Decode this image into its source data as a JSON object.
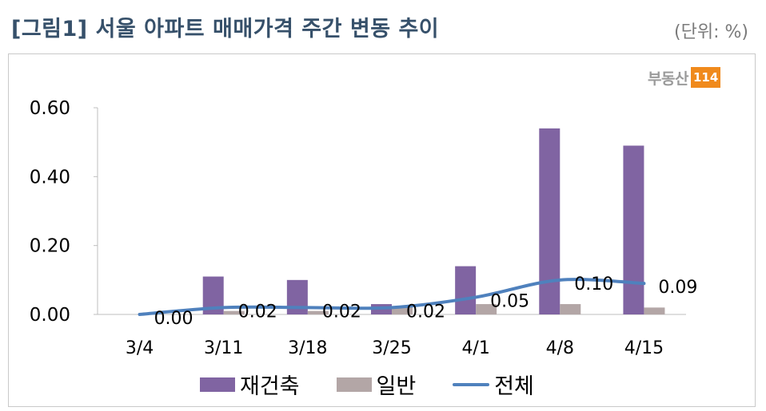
{
  "header": {
    "title": "[그림1] 서울 아파트 매매가격 주간 변동 추이",
    "unit": "(단위: %)"
  },
  "logo": {
    "text": "부동산",
    "box": "114"
  },
  "colors": {
    "reconstruction": "#8064a2",
    "general": "#b3a6a6",
    "total": "#4f81bd",
    "title": "#36506a",
    "logo": "#f08a1c"
  },
  "chart_data": {
    "type": "bar",
    "categories": [
      "3/4",
      "3/11",
      "3/18",
      "3/25",
      "4/1",
      "4/8",
      "4/15"
    ],
    "series": [
      {
        "name": "재건축",
        "type": "bar",
        "values": [
          0.0,
          0.11,
          0.1,
          0.03,
          0.14,
          0.54,
          0.49
        ]
      },
      {
        "name": "일반",
        "type": "bar",
        "values": [
          0.0,
          0.01,
          0.01,
          0.02,
          0.03,
          0.03,
          0.02
        ]
      },
      {
        "name": "전체",
        "type": "line",
        "values": [
          0.0,
          0.02,
          0.02,
          0.02,
          0.05,
          0.1,
          0.09
        ],
        "data_labels": [
          "0.00",
          "0.02",
          "0.02",
          "0.02",
          "0.05",
          "0.10",
          "0.09"
        ]
      }
    ],
    "y_ticks": [
      "0.00",
      "0.20",
      "0.40",
      "0.60"
    ],
    "ylim": [
      0,
      0.6
    ],
    "grid": false,
    "legend": "bottom"
  }
}
